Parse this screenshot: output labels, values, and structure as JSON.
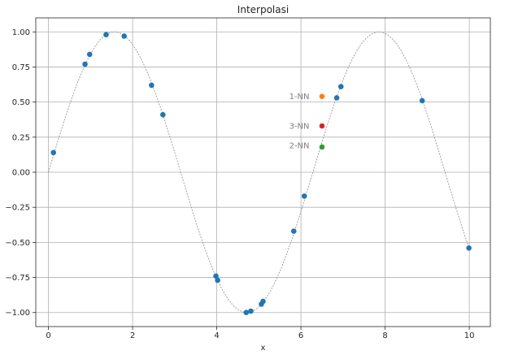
{
  "chart_data": {
    "type": "scatter",
    "title": "Interpolasi",
    "xlabel": "x",
    "ylabel": "",
    "xlim": [
      -0.3,
      10.5
    ],
    "ylim": [
      -1.1,
      1.1
    ],
    "xticks": [
      0,
      2,
      4,
      6,
      8,
      10
    ],
    "xtick_labels": [
      "0",
      "2",
      "4",
      "6",
      "8",
      "10"
    ],
    "yticks": [
      -1.0,
      -0.75,
      -0.5,
      -0.25,
      0.0,
      0.25,
      0.5,
      0.75,
      1.0
    ],
    "ytick_labels": [
      "−1.00",
      "−0.75",
      "−0.50",
      "−0.25",
      "0.00",
      "0.25",
      "0.50",
      "0.75",
      "1.00"
    ],
    "grid": true,
    "curve": {
      "function": "sin",
      "x_range": [
        0,
        10
      ],
      "color": "#8c8c8c",
      "style": "dotted"
    },
    "series": [
      {
        "color": "#1f77b4",
        "points": [
          [
            0.12,
            0.14
          ],
          [
            0.87,
            0.77
          ],
          [
            0.98,
            0.84
          ],
          [
            1.37,
            0.98
          ],
          [
            1.8,
            0.97
          ],
          [
            2.45,
            0.62
          ],
          [
            2.72,
            0.41
          ],
          [
            3.98,
            -0.74
          ],
          [
            4.02,
            -0.77
          ],
          [
            4.7,
            -1.0
          ],
          [
            4.81,
            -0.99
          ],
          [
            5.06,
            -0.94
          ],
          [
            5.1,
            -0.92
          ],
          [
            5.83,
            -0.42
          ],
          [
            6.08,
            -0.17
          ],
          [
            6.85,
            0.53
          ],
          [
            6.95,
            0.61
          ],
          [
            8.88,
            0.51
          ],
          [
            9.99,
            -0.54
          ]
        ]
      },
      {
        "name": "1-NN",
        "color": "#ff7f0e",
        "points": [
          [
            6.5,
            0.54
          ]
        ]
      },
      {
        "name": "3-NN",
        "color": "#d62728",
        "points": [
          [
            6.5,
            0.33
          ]
        ]
      },
      {
        "name": "2-NN",
        "color": "#2ca02c",
        "points": [
          [
            6.5,
            0.18
          ]
        ]
      }
    ],
    "annotations": [
      {
        "text": "1-NN",
        "x": 5.72,
        "y": 0.54,
        "color": "#808080"
      },
      {
        "text": "3-NN",
        "x": 5.72,
        "y": 0.33,
        "color": "#808080"
      },
      {
        "text": "2-NN",
        "x": 5.72,
        "y": 0.19,
        "color": "#808080"
      }
    ]
  }
}
